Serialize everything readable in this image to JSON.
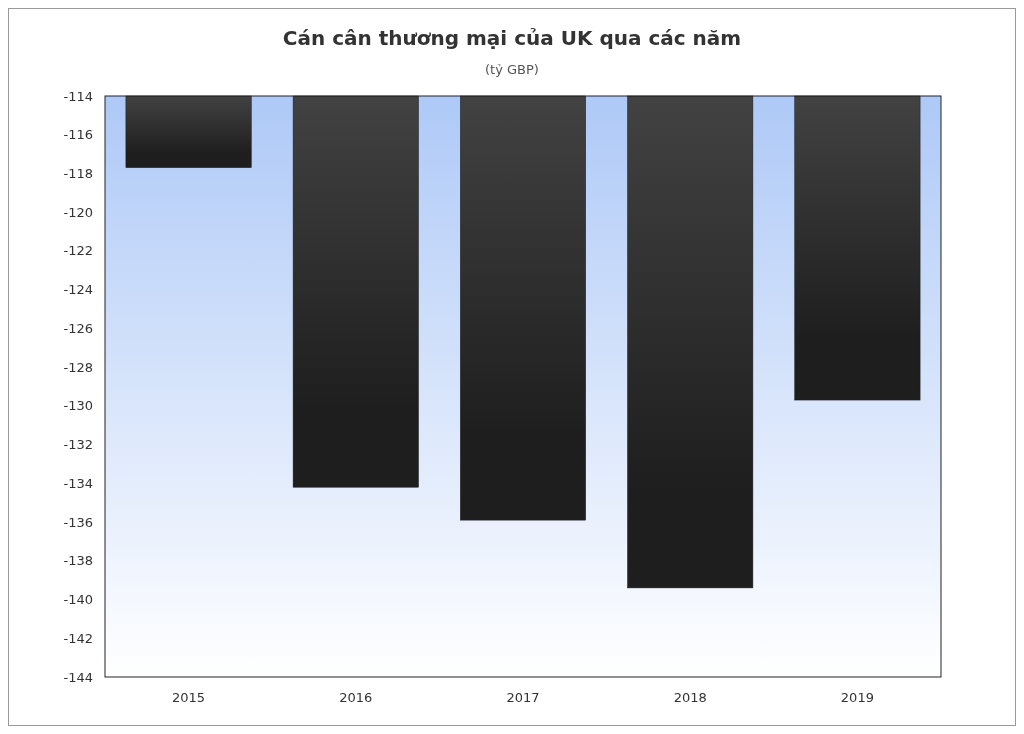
{
  "chart_data": {
    "type": "bar",
    "title": "Cán cân thương mại của UK qua các năm",
    "subtitle": "(tỷ GBP)",
    "categories": [
      "2015",
      "2016",
      "2017",
      "2018",
      "2019"
    ],
    "values": [
      -117.7,
      -134.2,
      -135.9,
      -139.4,
      -129.7
    ],
    "color": "#1e1e1e",
    "ylim": [
      -144,
      -114
    ],
    "yticks": [
      -144,
      -142,
      -140,
      -138,
      -136,
      -134,
      -132,
      -130,
      -128,
      -126,
      -124,
      -122,
      -120,
      -118,
      -116,
      -114
    ],
    "grid": false
  }
}
